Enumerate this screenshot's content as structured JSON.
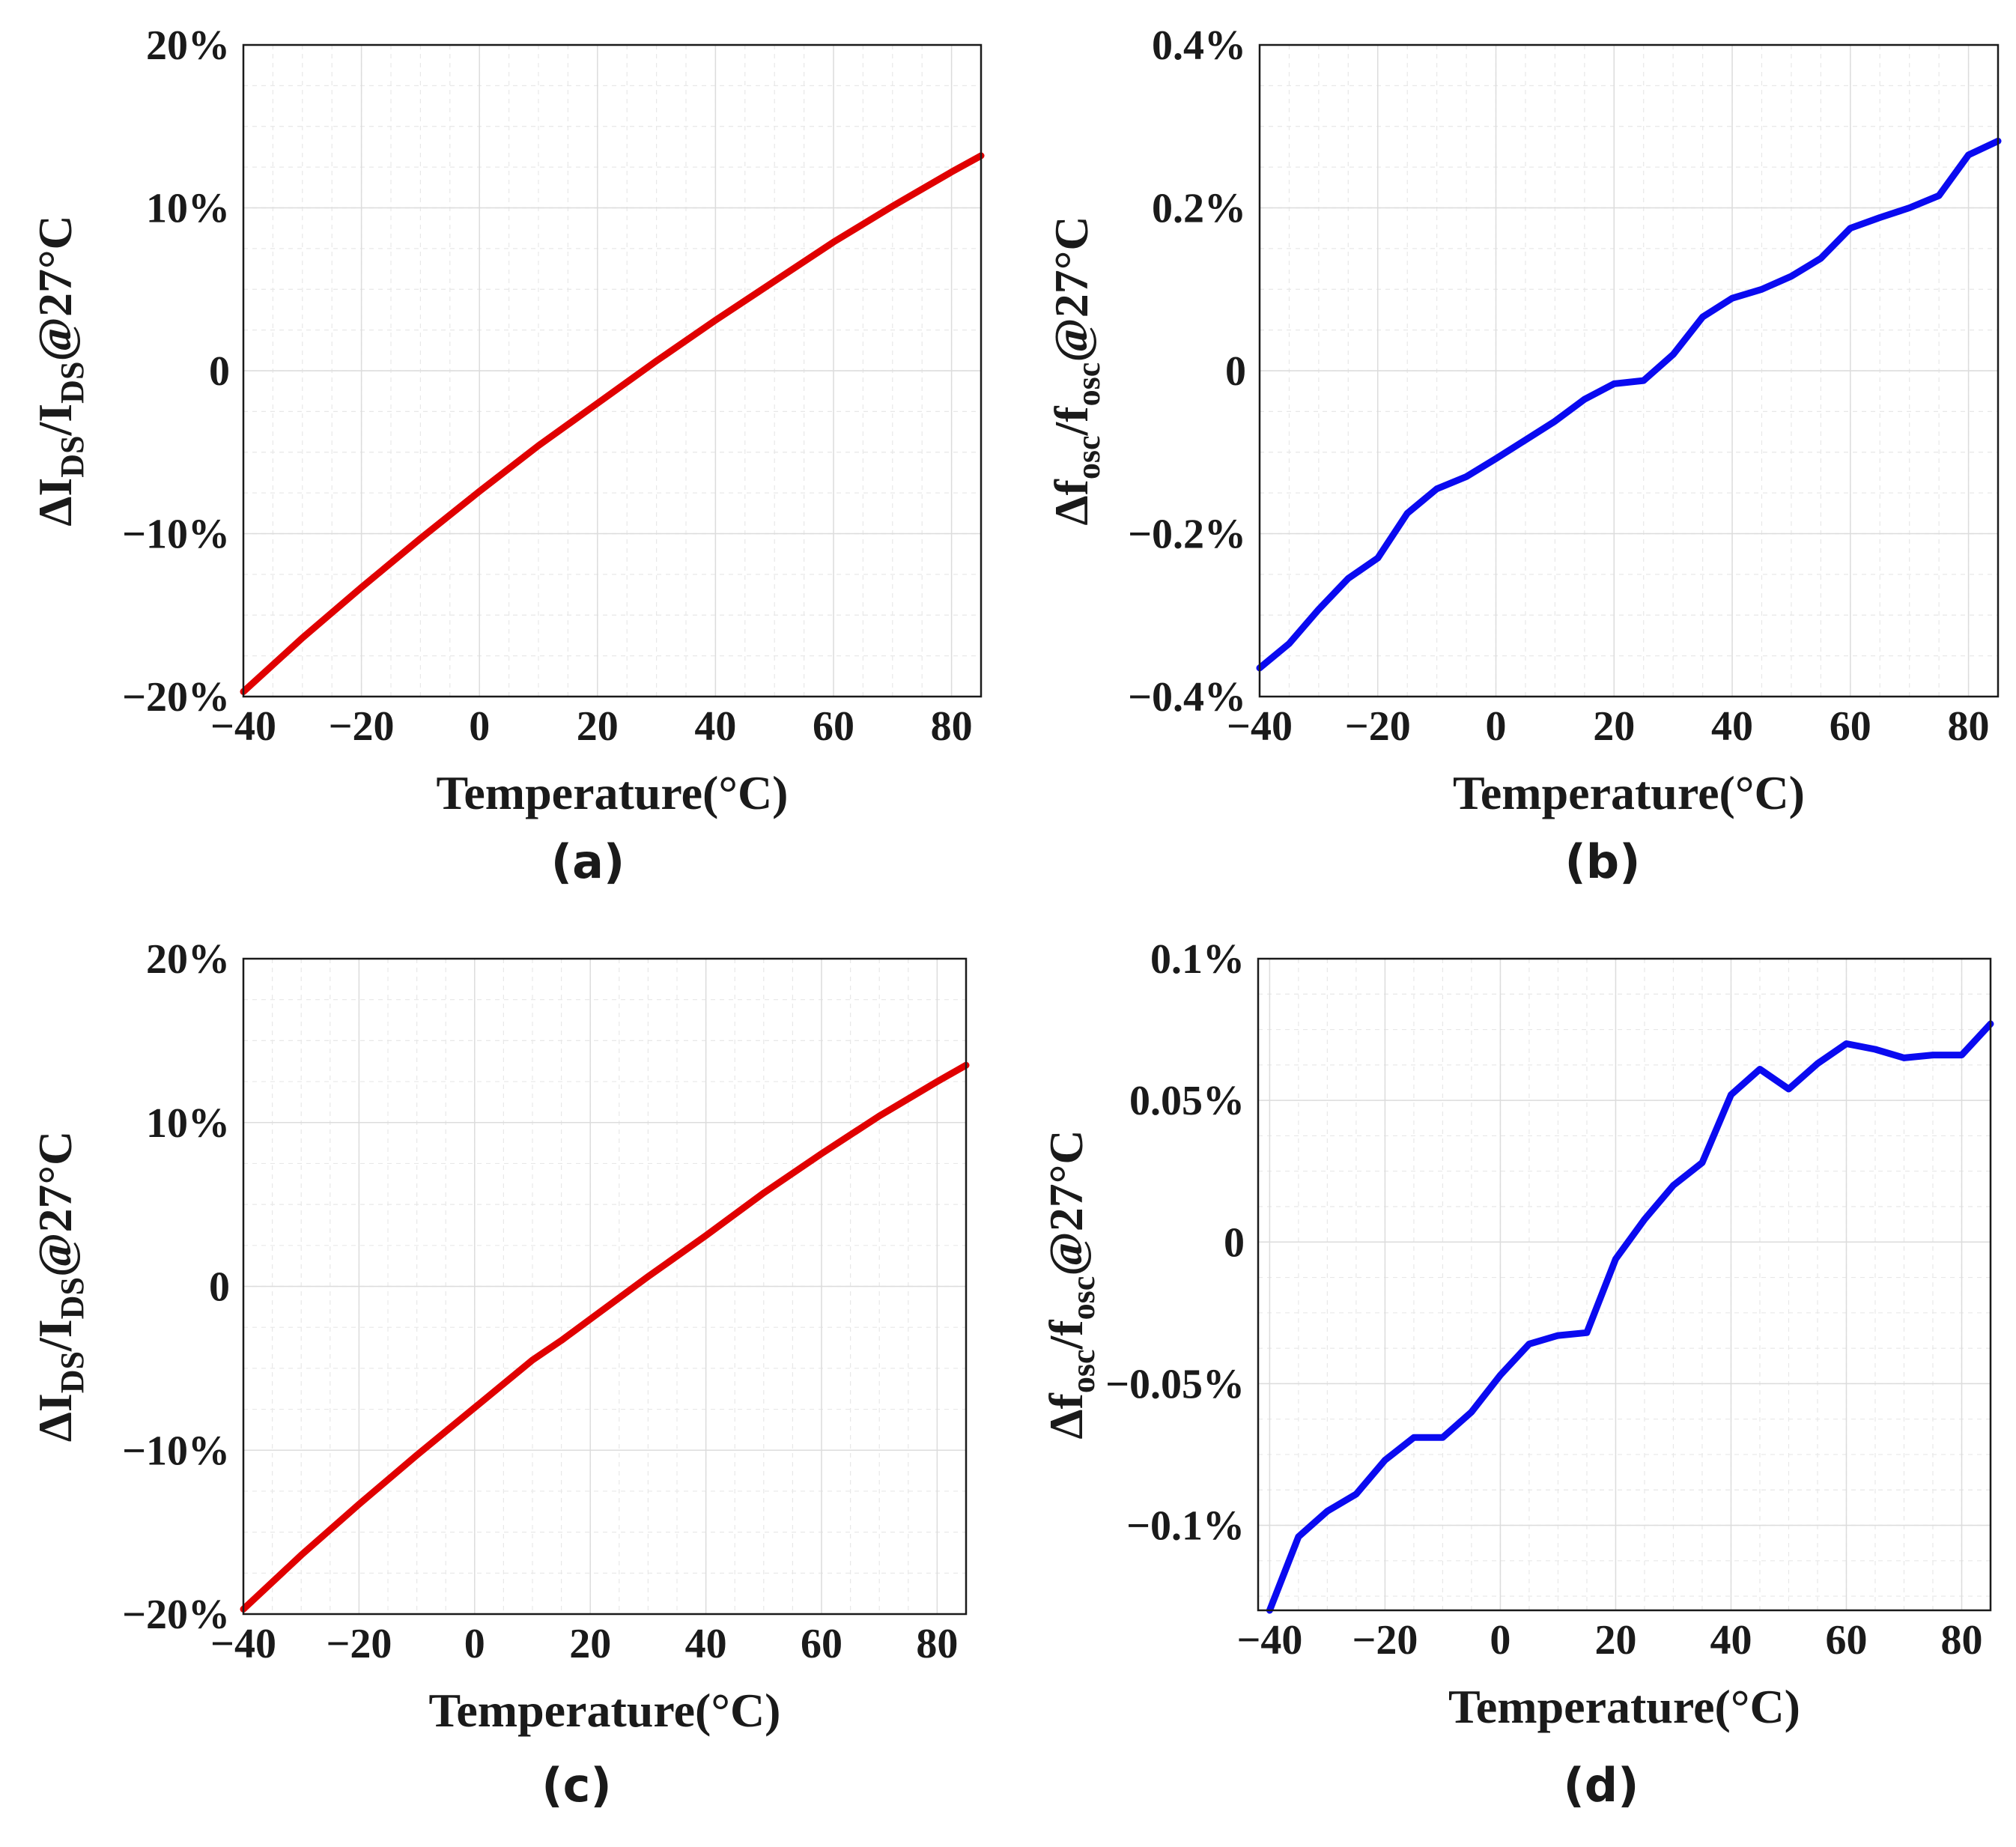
{
  "figure_labels": [
    "(a)",
    "(b)",
    "(c)",
    "(d)"
  ],
  "chart_data": [
    {
      "type": "line",
      "panel": "(a)",
      "xlabel": "Temperature(°C)",
      "ylabel": {
        "base": "ΔI",
        "sub1": "DS",
        "mid": "/I",
        "sub2": "DS",
        "tail": "@27°C"
      },
      "xlim": [
        -40,
        85
      ],
      "ylim": [
        -20,
        20
      ],
      "xticks": [
        -40,
        -20,
        0,
        20,
        40,
        60,
        80
      ],
      "xtick_labels": [
        "−40",
        "−20",
        "0",
        "20",
        "40",
        "60",
        "80"
      ],
      "yticks": [
        -20,
        -10,
        0,
        10,
        20
      ],
      "ytick_labels": [
        "−20%",
        "−10%",
        "0",
        "10%",
        "20%"
      ],
      "grid": true,
      "color": "#e00000",
      "series": [
        {
          "name": "ΔIDS/IDS",
          "x": [
            -40,
            -30,
            -20,
            -10,
            0,
            10,
            20,
            30,
            40,
            50,
            60,
            70,
            80,
            85
          ],
          "y": [
            -19.7,
            -16.4,
            -13.3,
            -10.3,
            -7.4,
            -4.6,
            -2.0,
            0.6,
            3.1,
            5.5,
            7.9,
            10.1,
            12.2,
            13.2
          ]
        }
      ]
    },
    {
      "type": "line",
      "panel": "(b)",
      "xlabel": "Temperature(°C)",
      "ylabel": {
        "base": "Δf",
        "sub1": "osc",
        "mid": "/f",
        "sub2": "osc",
        "tail": "@27°C"
      },
      "xlim": [
        -40,
        85
      ],
      "ylim": [
        -0.4,
        0.4
      ],
      "xticks": [
        -40,
        -20,
        0,
        20,
        40,
        60,
        80
      ],
      "xtick_labels": [
        "−40",
        "−20",
        "0",
        "20",
        "40",
        "60",
        "80"
      ],
      "yticks": [
        -0.4,
        -0.2,
        0,
        0.2,
        0.4
      ],
      "ytick_labels": [
        "−0.4%",
        "−0.2%",
        "0",
        "0.2%",
        "0.4%"
      ],
      "grid": true,
      "color": "#0a0af0",
      "series": [
        {
          "name": "Δfosc/fosc",
          "x": [
            -40,
            -35,
            -30,
            -25,
            -20,
            -15,
            -10,
            -5,
            0,
            5,
            10,
            15,
            20,
            25,
            30,
            35,
            40,
            45,
            50,
            55,
            60,
            65,
            70,
            75,
            80,
            85
          ],
          "y": [
            -0.365,
            -0.335,
            -0.293,
            -0.255,
            -0.23,
            -0.175,
            -0.145,
            -0.13,
            -0.108,
            -0.085,
            -0.062,
            -0.035,
            -0.016,
            -0.012,
            0.02,
            0.066,
            0.089,
            0.1,
            0.116,
            0.138,
            0.175,
            0.188,
            0.2,
            0.215,
            0.265,
            0.282
          ]
        }
      ]
    },
    {
      "type": "line",
      "panel": "(c)",
      "xlabel": "Temperature(°C)",
      "ylabel": {
        "base": "ΔI",
        "sub1": "DS",
        "mid": "/I",
        "sub2": "DS",
        "tail": "@27°C"
      },
      "xlim": [
        -40,
        85
      ],
      "ylim": [
        -20,
        20
      ],
      "xticks": [
        -40,
        -20,
        0,
        20,
        40,
        60,
        80
      ],
      "xtick_labels": [
        "−40",
        "−20",
        "0",
        "20",
        "40",
        "60",
        "80"
      ],
      "yticks": [
        -20,
        -10,
        0,
        10,
        20
      ],
      "ytick_labels": [
        "−20%",
        "−10%",
        "0",
        "10%",
        "20%"
      ],
      "grid": true,
      "color": "#e00000",
      "series": [
        {
          "name": "ΔIDS/IDS",
          "x": [
            -40,
            -30,
            -20,
            -10,
            0,
            10,
            15,
            20,
            30,
            40,
            50,
            60,
            70,
            80,
            85
          ],
          "y": [
            -19.7,
            -16.4,
            -13.3,
            -10.3,
            -7.4,
            -4.5,
            -3.3,
            -2.0,
            0.6,
            3.1,
            5.7,
            8.1,
            10.4,
            12.5,
            13.5
          ]
        }
      ]
    },
    {
      "type": "line",
      "panel": "(d)",
      "xlabel": "Temperature(°C)",
      "ylabel": {
        "base": "Δf",
        "sub1": "osc",
        "mid": "/f",
        "sub2": "osc",
        "tail": "@27°C"
      },
      "xlim": [
        -42,
        85
      ],
      "ylim": [
        -0.13,
        0.1
      ],
      "xticks": [
        -40,
        -20,
        0,
        20,
        40,
        60,
        80
      ],
      "xtick_labels": [
        "−40",
        "−20",
        "0",
        "20",
        "40",
        "60",
        "80"
      ],
      "yticks": [
        -0.1,
        -0.05,
        0,
        0.05,
        0.1
      ],
      "ytick_labels": [
        "−0.1%",
        "−0.05%",
        "0",
        "0.05%",
        "0.1%"
      ],
      "grid": true,
      "color": "#0a0af0",
      "series": [
        {
          "name": "Δfosc/fosc",
          "x": [
            -40,
            -35,
            -30,
            -25,
            -20,
            -15,
            -10,
            -5,
            0,
            5,
            10,
            15,
            20,
            25,
            30,
            35,
            40,
            45,
            50,
            55,
            60,
            65,
            70,
            75,
            80,
            85
          ],
          "y": [
            -0.13,
            -0.104,
            -0.095,
            -0.089,
            -0.077,
            -0.069,
            -0.069,
            -0.06,
            -0.047,
            -0.036,
            -0.033,
            -0.032,
            -0.006,
            0.008,
            0.02,
            0.028,
            0.052,
            0.061,
            0.054,
            0.063,
            0.07,
            0.068,
            0.065,
            0.066,
            0.066,
            0.077
          ]
        }
      ]
    }
  ]
}
